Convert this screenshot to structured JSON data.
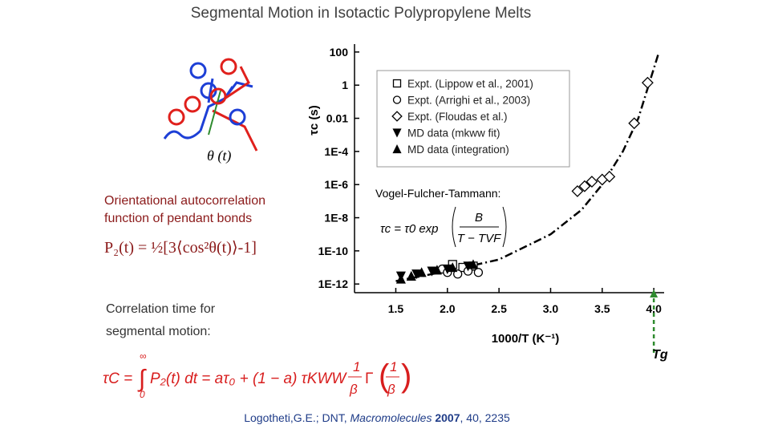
{
  "title": "Segmental Motion in Isotactic Polypropylene Melts",
  "angle_label": "θ (t)",
  "autocorrelation_caption": [
    "Orientational autocorrelation",
    "function of pendant bonds"
  ],
  "p2_formula": "P₂(t) = ½[3⟨cos²θ(t)⟩-1]",
  "correlation_caption": [
    "Correlation time for",
    "segmental motion:"
  ],
  "bottom_equation": {
    "lhs": "τC =",
    "integral": "∫",
    "upper": "∞",
    "lower": "0",
    "body": "P₂(t) dt = aτ₀ + (1 − a) τKWW",
    "frac1_num": "1",
    "frac1_den": "β",
    "gamma": "Γ",
    "frac2_num": "1",
    "frac2_den": "β"
  },
  "citation": {
    "authors": "Logotheti,G.E.;  DNT,",
    "journal": "Macromolecules",
    "year": "2007",
    "rest": ", 40, 2235"
  },
  "chart_data": {
    "type": "scatter",
    "log_y": true,
    "xlabel": "1000/T (K⁻¹)",
    "ylabel": "τc (s)",
    "xlim": [
      1.1,
      4.1
    ],
    "xticks": [
      1.5,
      {
        "value": 2,
        "label": "2.0"
      },
      2.5,
      {
        "value": 3,
        "label": "3.0"
      },
      3.5,
      {
        "value": 4,
        "label": "4.0"
      }
    ],
    "ylim": [
      3e-13,
      300
    ],
    "yticks": [
      100,
      1,
      0.01,
      {
        "value": 0.0001,
        "label": "1E-4"
      },
      {
        "value": 1e-06,
        "label": "1E-6"
      },
      {
        "value": 1e-08,
        "label": "1E-8"
      },
      {
        "value": 1e-10,
        "label": "1E-10"
      },
      {
        "value": 1e-12,
        "label": "1E-12"
      }
    ],
    "series": [
      {
        "name": "Expt. (Lippow et al., 2001)",
        "color": "#000000",
        "marker": "square",
        "filled": false,
        "x": [
          2.05,
          2.15,
          2.25
        ],
        "values": [
          1.5e-11,
          1e-11,
          1.2e-11
        ]
      },
      {
        "name": "Expt. (Arrighi et al., 2003)",
        "color": "#000000",
        "marker": "circle",
        "filled": false,
        "x": [
          1.95,
          2.0,
          2.1,
          2.2,
          2.3
        ],
        "values": [
          8e-12,
          5e-12,
          4e-12,
          6e-12,
          5e-12
        ]
      },
      {
        "name": "Expt. (Floudas et al.)",
        "color": "#000000",
        "marker": "diamond",
        "filled": false,
        "x": [
          3.26,
          3.33,
          3.4,
          3.5,
          3.57,
          3.81,
          3.94
        ],
        "values": [
          4e-07,
          8e-07,
          1.5e-06,
          2e-06,
          3e-06,
          0.005,
          1.4
        ]
      },
      {
        "name": "MD data (mkww fit)",
        "color": "#000000",
        "marker": "triangle-down",
        "filled": true,
        "x": [
          1.55,
          1.7,
          1.85,
          2.0,
          2.2
        ],
        "values": [
          3e-12,
          4e-12,
          6e-12,
          8e-12,
          1.2e-11
        ]
      },
      {
        "name": "MD data (integration)",
        "color": "#000000",
        "marker": "triangle-up",
        "filled": true,
        "x": [
          1.55,
          1.65,
          1.75,
          1.9,
          2.05,
          2.25
        ],
        "values": [
          2e-12,
          3e-12,
          5e-12,
          7e-12,
          1e-11,
          1.5e-11
        ]
      }
    ],
    "curve": {
      "x": [
        1.5,
        2.0,
        2.5,
        3.0,
        3.3,
        3.5,
        3.7,
        3.85,
        4.0,
        4.05
      ],
      "values": [
        1.5e-12,
        6e-12,
        3e-11,
        1e-09,
        3e-08,
        1e-06,
        0.0001,
        0.01,
        10,
        100
      ],
      "color": "#000000"
    },
    "vft_label": "Vogel-Fulcher-Tammann:",
    "vft_equation": {
      "lhs": "τc = τ0 exp",
      "num": "B",
      "den": "T − TVF"
    },
    "tg_label": "Tg",
    "tg_x": 4.0,
    "tg_color": "#2e8b2e"
  }
}
